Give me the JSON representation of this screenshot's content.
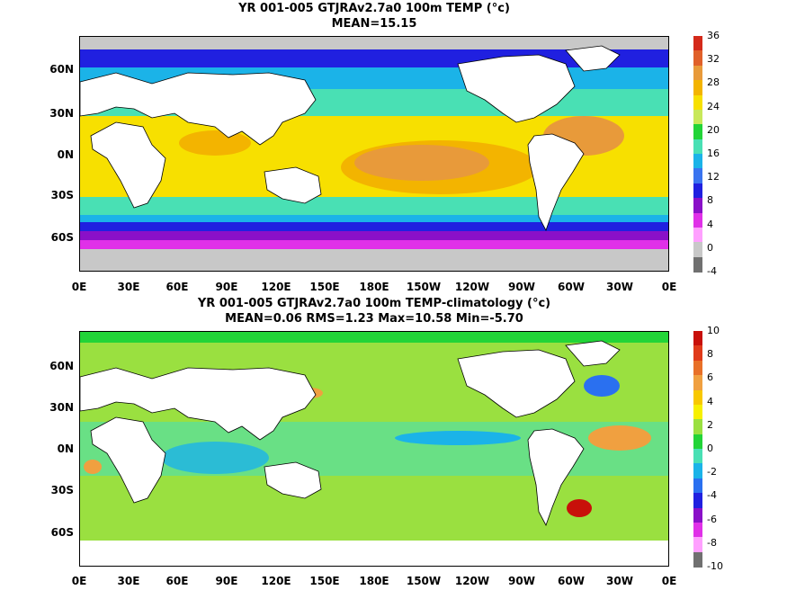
{
  "top": {
    "title": "YR 001-005 GTJRAv2.7a0 100m TEMP (°c)",
    "subtitle": "MEAN=15.15",
    "colorbar": {
      "ticks": [
        "36",
        "32",
        "28",
        "24",
        "20",
        "16",
        "12",
        "8",
        "4",
        "0",
        "-4"
      ],
      "colors": [
        "#d42a1a",
        "#e0602a",
        "#e89a3a",
        "#f3b400",
        "#f7e000",
        "#c8e85a",
        "#22d438",
        "#49e0b4",
        "#1bb3e8",
        "#3a74f0",
        "#2020e0",
        "#8a10c8",
        "#e030e8",
        "#ffa0ff",
        "#c8c8c8",
        "#707070"
      ]
    },
    "ylabels": [
      "60N",
      "30N",
      "0N",
      "30S",
      "60S"
    ],
    "xlabels": [
      "0E",
      "30E",
      "60E",
      "90E",
      "120E",
      "150E",
      "180E",
      "150W",
      "120W",
      "90W",
      "60W",
      "30W",
      "0E"
    ]
  },
  "bottom": {
    "title": "YR 001-005 GTJRAv2.7a0 100m TEMP-climatology (°c)",
    "subtitle": "MEAN=0.06   RMS=1.23   Max=10.58   Min=-5.70",
    "colorbar": {
      "ticks": [
        "10",
        "8",
        "6",
        "4",
        "2",
        "0",
        "-2",
        "-4",
        "-6",
        "-8",
        "-10"
      ],
      "colors": [
        "#c8100a",
        "#e03a1a",
        "#e87028",
        "#f0a040",
        "#f8c800",
        "#f7f000",
        "#9ae040",
        "#22d438",
        "#49e0b4",
        "#1bb3e8",
        "#2a70f0",
        "#2020e0",
        "#8a10c8",
        "#e030e8",
        "#ffa0ff",
        "#707070"
      ]
    },
    "ylabels": [
      "60N",
      "30N",
      "0N",
      "30S",
      "60S"
    ],
    "xlabels": [
      "0E",
      "30E",
      "60E",
      "90E",
      "120E",
      "150E",
      "180E",
      "150W",
      "120W",
      "90W",
      "60W",
      "30W",
      "0E"
    ]
  },
  "palette": {
    "land": "#ffffff",
    "ice": "#c8c8c8",
    "warm_top": "#e89a3a",
    "anom_base": "#9ae040",
    "anom_zero": "#22d438"
  }
}
